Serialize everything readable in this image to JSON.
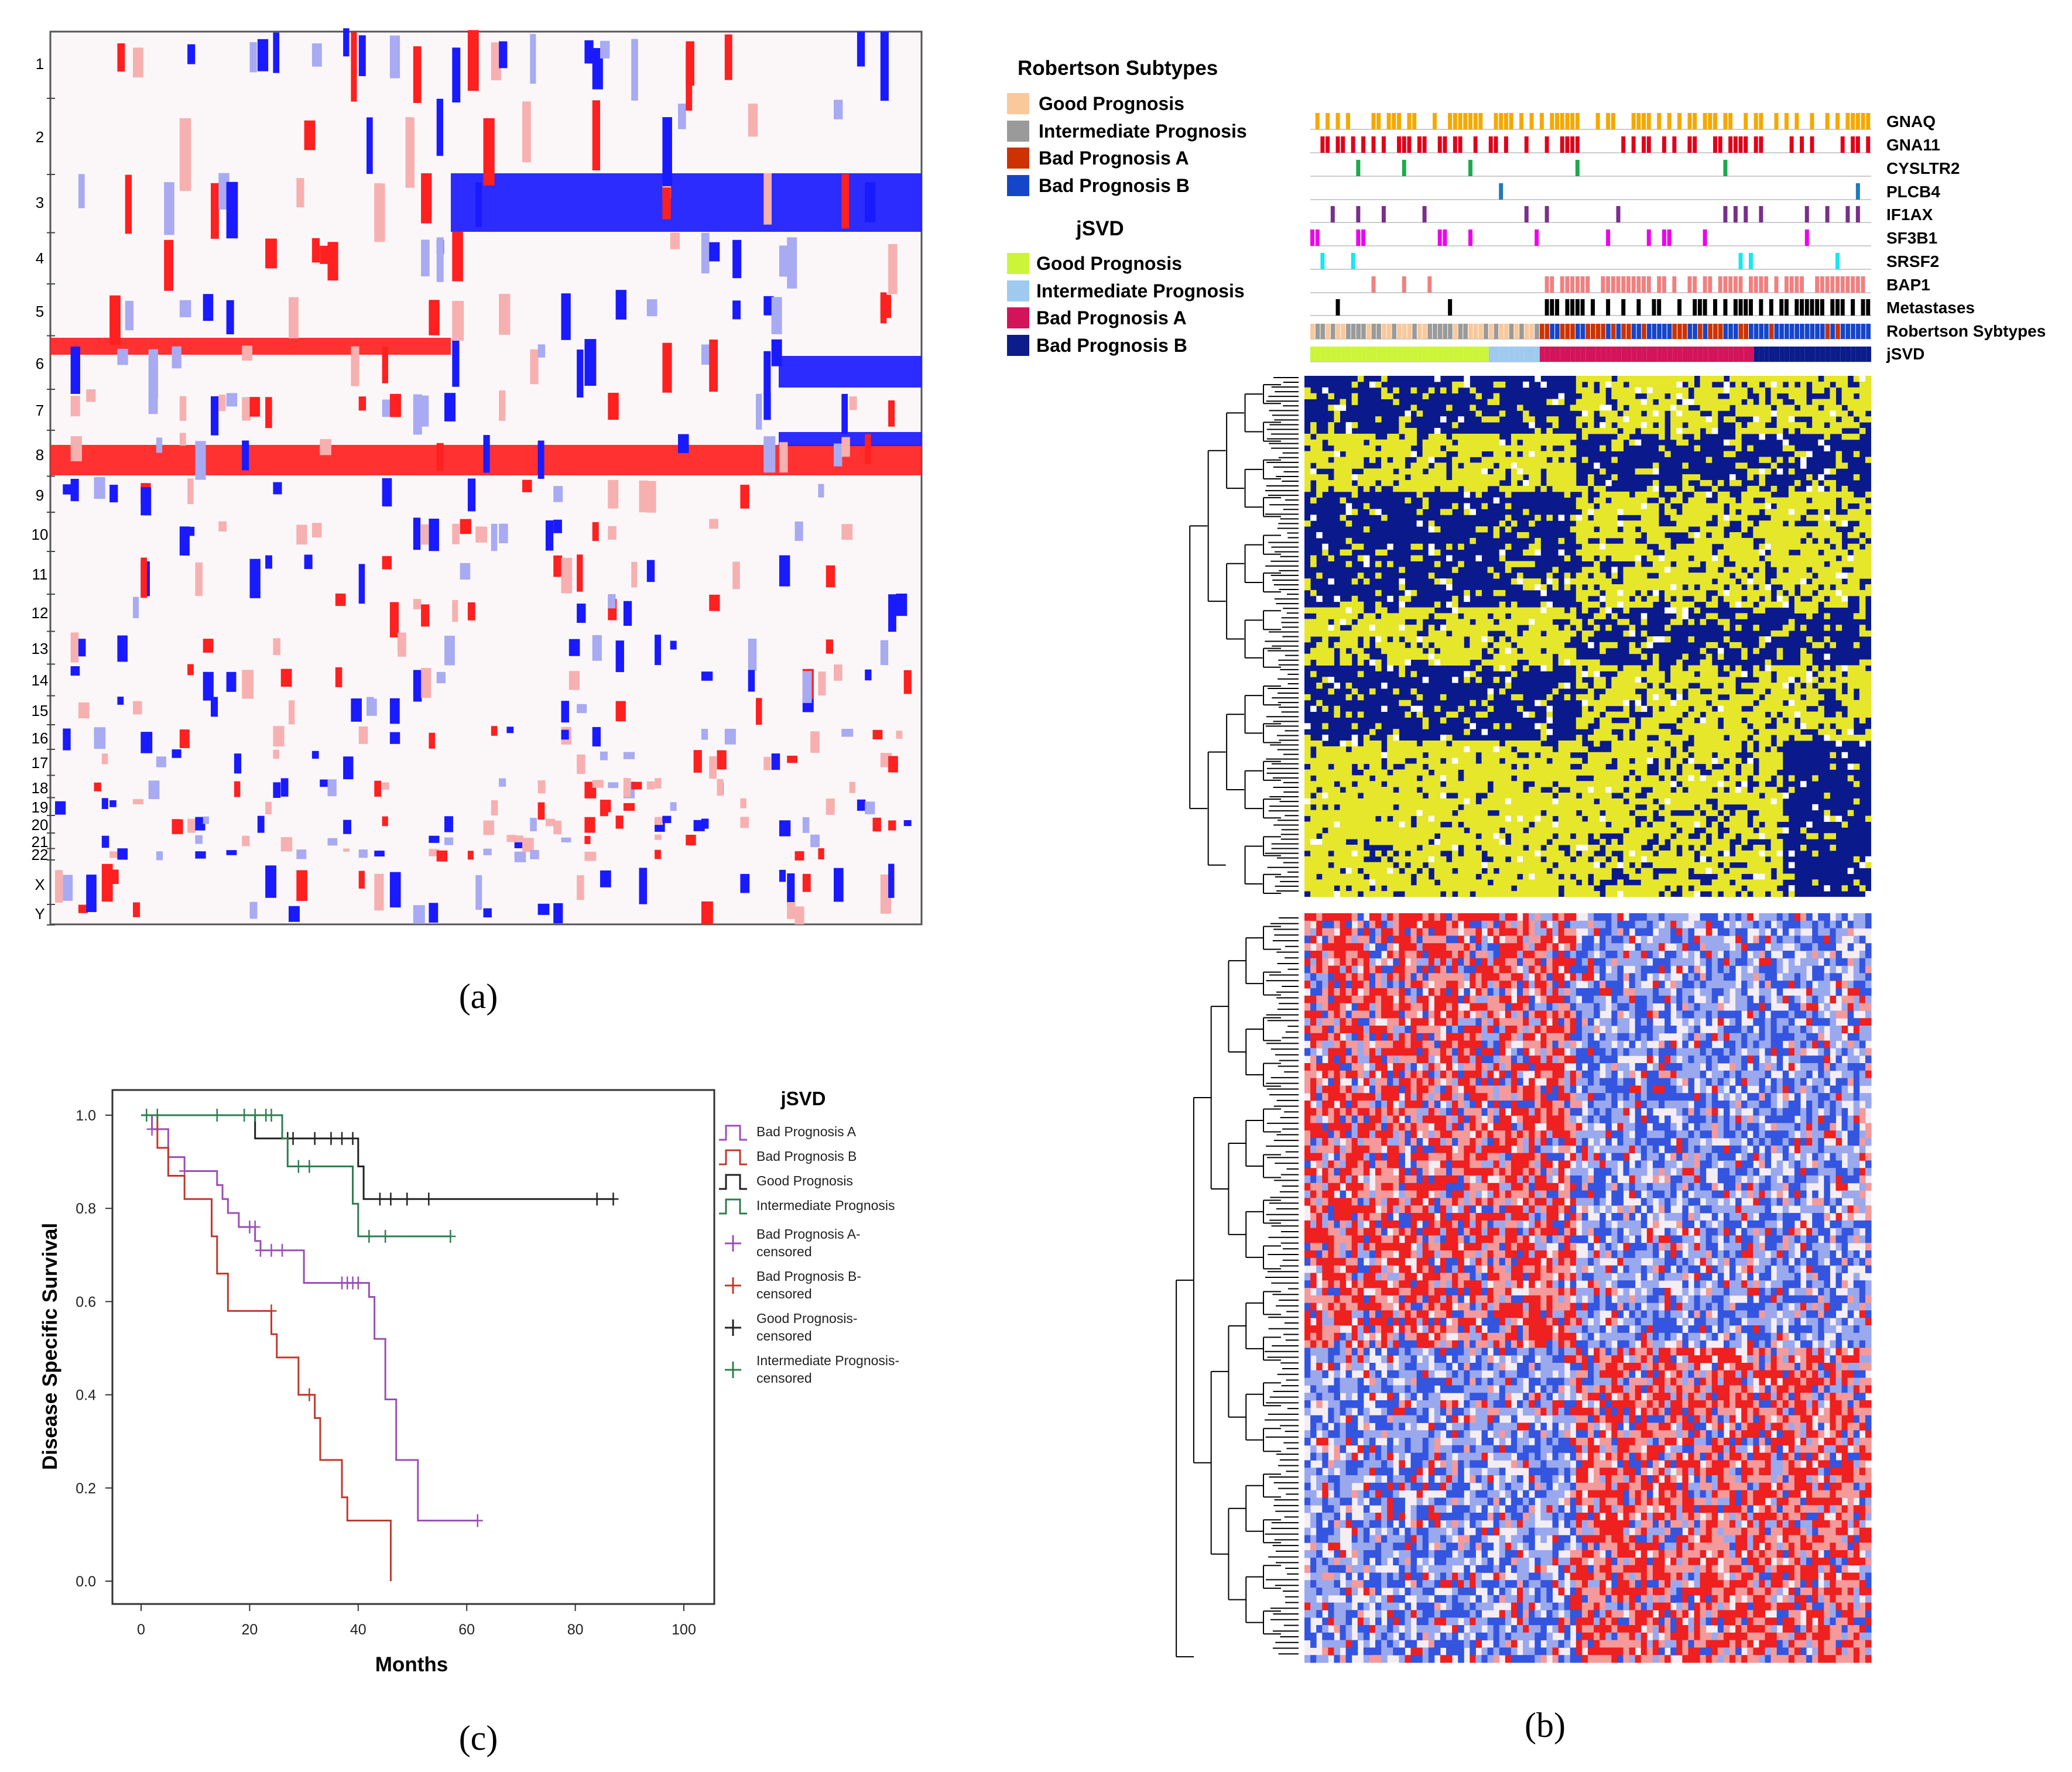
{
  "panel_letters": {
    "a": "(a)",
    "b": "(b)",
    "c": "(c)"
  },
  "panel_a": {
    "chromosomes": [
      "1",
      "2",
      "3",
      "4",
      "5",
      "6",
      "7",
      "8",
      "9",
      "10",
      "11",
      "12",
      "13",
      "14",
      "15",
      "16",
      "17",
      "18",
      "19",
      "20",
      "21",
      "22",
      "X",
      "Y"
    ],
    "colors": {
      "gain": "#ff2020",
      "gain_light": "#f7b0b0",
      "loss": "#1a1aff",
      "loss_light": "#a8aaf2",
      "background": "#fbf7f9"
    }
  },
  "panel_b": {
    "legend": {
      "robertson_title": "Robertson Subtypes",
      "robertson_items": [
        {
          "label": "Good Prognosis",
          "color": "#f9c89b"
        },
        {
          "label": "Intermediate Prognosis",
          "color": "#9a9a9a"
        },
        {
          "label": "Bad Prognosis A",
          "color": "#cc3300"
        },
        {
          "label": "Bad Prognosis B",
          "color": "#1546c9"
        }
      ],
      "jsvd_title": "jSVD",
      "jsvd_items": [
        {
          "label": "Good Prognosis",
          "color": "#ccf53a"
        },
        {
          "label": "Intermediate Prognosis",
          "color": "#9fcaf0"
        },
        {
          "label": "Bad Prognosis A",
          "color": "#d4145a"
        },
        {
          "label": "Bad Prognosis B",
          "color": "#0c1c8a"
        }
      ]
    },
    "tracks": [
      {
        "label": "GNAQ",
        "color": "#f5a800"
      },
      {
        "label": "GNA11",
        "color": "#e0001a"
      },
      {
        "label": "CYSLTR2",
        "color": "#1daa4d"
      },
      {
        "label": "PLCB4",
        "color": "#1f7ab8"
      },
      {
        "label": "IF1AX",
        "color": "#7a2e8c"
      },
      {
        "label": "SF3B1",
        "color": "#ee00ee"
      },
      {
        "label": "SRSF2",
        "color": "#19e6f0"
      },
      {
        "label": "BAP1",
        "color": "#f08080"
      },
      {
        "label": "Metastases",
        "color": "#000000"
      },
      {
        "label": "Robertson Sybtypes",
        "color": "#888888"
      },
      {
        "label": "jSVD",
        "color": "#888888"
      }
    ],
    "heatmap1_colors": {
      "low": "#0a1a8c",
      "high": "#e6e62a",
      "missing": "#ffffff"
    },
    "heatmap2_colors": {
      "low": "#3355e0",
      "high": "#ee2020",
      "mid": "#f4eef4"
    }
  },
  "chart_data": {
    "type": "line",
    "legend_title": "jSVD",
    "xlabel": "Months",
    "ylabel": "Disease Specific Survival",
    "xlim": [
      0,
      100
    ],
    "ylim": [
      0.0,
      1.0
    ],
    "x_ticks": [
      "0",
      "20",
      "40",
      "60",
      "80",
      "100"
    ],
    "y_ticks": [
      "0.0",
      "0.2",
      "0.4",
      "0.6",
      "0.8",
      "1.0"
    ],
    "series": [
      {
        "name": "Bad Prognosis A",
        "color": "#9a4fb4",
        "steps": [
          [
            0,
            1.0
          ],
          [
            2,
            0.97
          ],
          [
            5,
            0.91
          ],
          [
            8,
            0.88
          ],
          [
            14,
            0.85
          ],
          [
            15,
            0.82
          ],
          [
            16,
            0.79
          ],
          [
            18,
            0.76
          ],
          [
            21,
            0.73
          ],
          [
            22,
            0.71
          ],
          [
            30,
            0.64
          ],
          [
            42,
            0.61
          ],
          [
            43,
            0.52
          ],
          [
            45,
            0.39
          ],
          [
            47,
            0.26
          ],
          [
            51,
            0.13
          ],
          [
            62,
            0.13
          ]
        ],
        "censored": [
          [
            2,
            0.97
          ],
          [
            3,
            0.97
          ],
          [
            8,
            0.88
          ],
          [
            20,
            0.76
          ],
          [
            21,
            0.76
          ],
          [
            22,
            0.71
          ],
          [
            24,
            0.71
          ],
          [
            26,
            0.71
          ],
          [
            37,
            0.64
          ],
          [
            38,
            0.64
          ],
          [
            39,
            0.64
          ],
          [
            40,
            0.64
          ],
          [
            62,
            0.13
          ]
        ]
      },
      {
        "name": "Bad Prognosis B",
        "color": "#c0392b",
        "steps": [
          [
            0,
            1.0
          ],
          [
            3,
            0.93
          ],
          [
            5,
            0.87
          ],
          [
            8,
            0.82
          ],
          [
            13,
            0.74
          ],
          [
            14,
            0.66
          ],
          [
            16,
            0.58
          ],
          [
            24,
            0.53
          ],
          [
            25,
            0.48
          ],
          [
            29,
            0.4
          ],
          [
            32,
            0.35
          ],
          [
            33,
            0.26
          ],
          [
            37,
            0.18
          ],
          [
            38,
            0.13
          ],
          [
            46,
            0.0
          ]
        ],
        "censored": [
          [
            24,
            0.58
          ],
          [
            31,
            0.4
          ]
        ]
      },
      {
        "name": "Good Prognosis",
        "color": "#222222",
        "steps": [
          [
            0,
            1.0
          ],
          [
            21,
            0.95
          ],
          [
            40,
            0.89
          ],
          [
            41,
            0.82
          ],
          [
            87,
            0.82
          ]
        ],
        "censored": [
          [
            27,
            0.95
          ],
          [
            28,
            0.95
          ],
          [
            32,
            0.95
          ],
          [
            35,
            0.95
          ],
          [
            37,
            0.95
          ],
          [
            39,
            0.95
          ],
          [
            44,
            0.82
          ],
          [
            46,
            0.82
          ],
          [
            49,
            0.82
          ],
          [
            53,
            0.82
          ],
          [
            84,
            0.82
          ],
          [
            87,
            0.82
          ]
        ]
      },
      {
        "name": "Intermediate Prognosis",
        "color": "#2e7d4f",
        "steps": [
          [
            0,
            1.0
          ],
          [
            26,
            0.95
          ],
          [
            27,
            0.89
          ],
          [
            39,
            0.81
          ],
          [
            40,
            0.74
          ],
          [
            57,
            0.74
          ]
        ],
        "censored": [
          [
            1,
            1.0
          ],
          [
            3,
            1.0
          ],
          [
            14,
            1.0
          ],
          [
            19,
            1.0
          ],
          [
            21,
            1.0
          ],
          [
            23,
            1.0
          ],
          [
            24,
            1.0
          ],
          [
            29,
            0.89
          ],
          [
            31,
            0.89
          ],
          [
            42,
            0.74
          ],
          [
            45,
            0.74
          ],
          [
            57,
            0.74
          ]
        ]
      }
    ],
    "legend_labels": [
      "Bad Prognosis A",
      "Bad Prognosis B",
      "Good Prognosis",
      "Intermediate Prognosis",
      "Bad Prognosis A-censored",
      "Bad Prognosis B-censored",
      "Good Prognosis-censored",
      "Intermediate Prognosis-censored"
    ]
  }
}
